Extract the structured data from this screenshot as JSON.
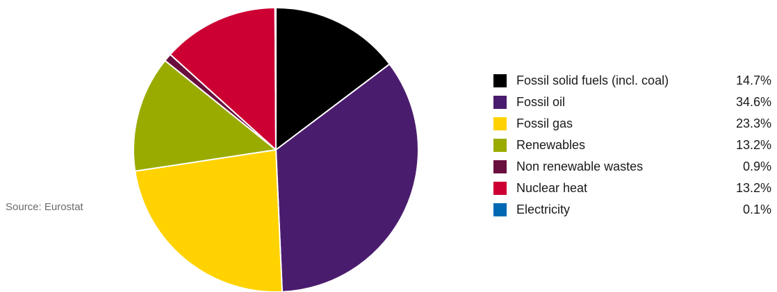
{
  "source_note": "Source: Eurostat",
  "chart_data": {
    "type": "pie",
    "title": "",
    "legend_position": "right",
    "start_angle_deg": 0,
    "direction": "clockwise",
    "slices": [
      {
        "label": "Fossil solid fuels (incl. coal)",
        "value": 14.7,
        "value_label": "14.7%",
        "color": "#000000"
      },
      {
        "label": "Fossil oil",
        "value": 34.6,
        "value_label": "34.6%",
        "color": "#4a1c6e"
      },
      {
        "label": "Fossil gas",
        "value": 23.3,
        "value_label": "23.3%",
        "color": "#ffd200"
      },
      {
        "label": "Renewables",
        "value": 13.2,
        "value_label": "13.2%",
        "color": "#9aab00"
      },
      {
        "label": "Non renewable wastes",
        "value": 0.9,
        "value_label": "0.9%",
        "color": "#6a0f3d"
      },
      {
        "label": "Nuclear heat",
        "value": 13.2,
        "value_label": "13.2%",
        "color": "#cc0033"
      },
      {
        "label": "Electricity",
        "value": 0.1,
        "value_label": "0.1%",
        "color": "#0069b4"
      }
    ]
  }
}
